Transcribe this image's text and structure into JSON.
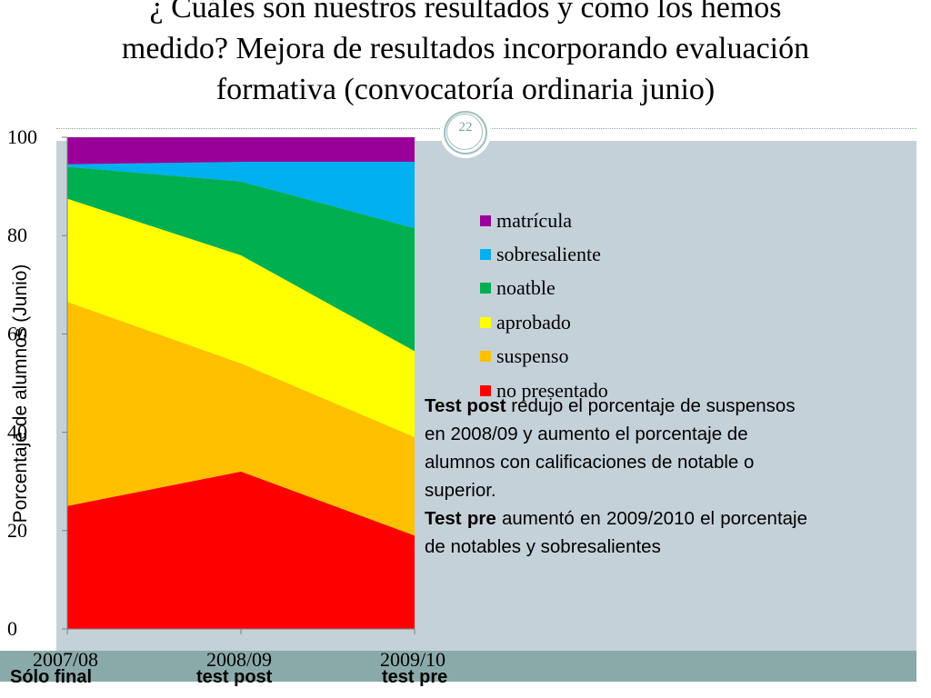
{
  "slide": {
    "title_lines": [
      "¿ Cuáles son nuestros resultados y cómo los hemos",
      "medido? Mejora de resultados incorporando evaluación",
      "formativa (convocatoría ordinaria junio)"
    ],
    "page_number": "22"
  },
  "chart_data": {
    "type": "area",
    "stacked": true,
    "categories": [
      "2007/08",
      "2008/09",
      "2009/10"
    ],
    "category_sublabels": [
      "Sólo final",
      "test post",
      "test pre"
    ],
    "ylabel": "Porcentaje de alumnos (Junio)",
    "ylim": [
      0,
      100
    ],
    "yticks": [
      0,
      20,
      40,
      60,
      80,
      100
    ],
    "legend_position": "right",
    "series": [
      {
        "name": "no presentado",
        "color": "#ff0000",
        "values": [
          25,
          32,
          19
        ]
      },
      {
        "name": "suspenso",
        "color": "#ffc000",
        "values": [
          41.5,
          22,
          20
        ]
      },
      {
        "name": "aprobado",
        "color": "#ffff00",
        "values": [
          21,
          22,
          17.5
        ]
      },
      {
        "name": "noatble",
        "color": "#00b050",
        "values": [
          6.5,
          15,
          25
        ]
      },
      {
        "name": "sobresaliente",
        "color": "#00b0f0",
        "values": [
          0.5,
          4,
          13.5
        ]
      },
      {
        "name": "matrícula",
        "color": "#990099",
        "values": [
          5.5,
          5,
          5
        ]
      }
    ],
    "legend_order": [
      "matrícula",
      "sobresaliente",
      "noatble",
      "aprobado",
      "suspenso",
      "no presentado"
    ]
  },
  "note": {
    "p1_bold": "Test post",
    "p1_text": " redujo el porcentaje de suspensos en 2008/09 y aumento el porcentaje de alumnos  con calificaciones de notable o superior.",
    "p2_bold": "Test pre",
    "p2_text": " aumentó en 2009/2010  el porcentaje de notables y sobresalientes"
  }
}
